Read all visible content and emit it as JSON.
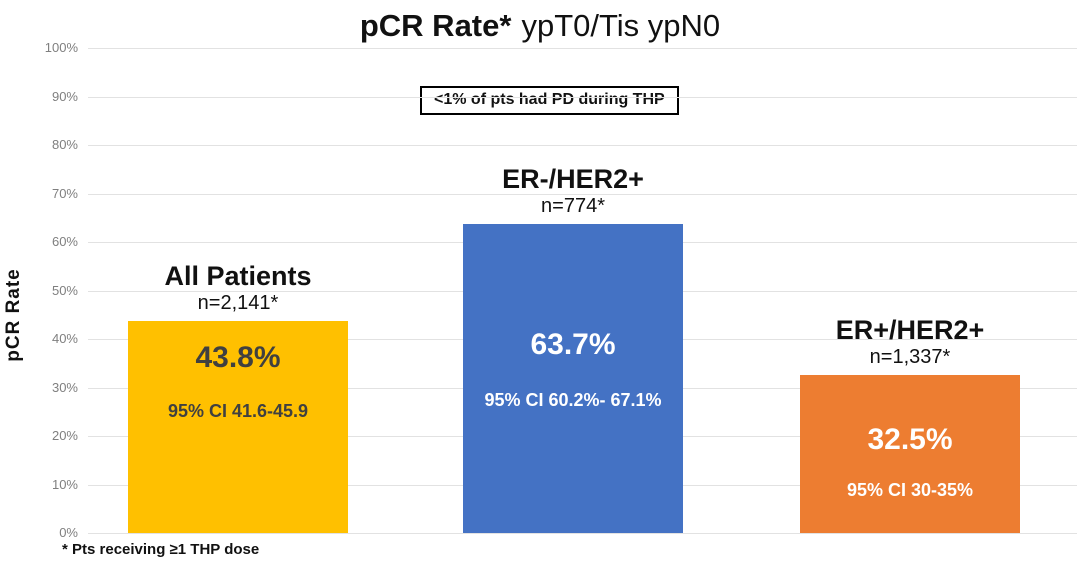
{
  "title": {
    "bold": "pCR Rate*",
    "regular": "ypT0/Tis ypN0"
  },
  "annotation": "<1% of pts had PD during THP",
  "footnote": "* Pts receiving ≥1 THP dose",
  "y_axis": {
    "label": "pCR Rate",
    "ticks": [
      "100%",
      "90%",
      "80%",
      "70%",
      "60%",
      "50%",
      "40%",
      "30%",
      "20%",
      "10%",
      "0%"
    ]
  },
  "chart_data": {
    "type": "bar",
    "title": "pCR Rate* ypT0/Tis ypN0",
    "xlabel": "",
    "ylabel": "pCR Rate",
    "ylim": [
      0,
      100
    ],
    "grid": true,
    "annotation": "<1% of pts had PD during THP",
    "footnote": "* Pts receiving ≥1 THP dose",
    "categories": [
      "All Patients",
      "ER-/HER2+",
      "ER+/HER2+"
    ],
    "values": [
      43.8,
      63.7,
      32.5
    ],
    "bars": [
      {
        "label": "All Patients",
        "n": "n=2,141*",
        "value": 43.8,
        "value_label": "43.8%",
        "ci": "95% CI 41.6-45.9",
        "color": "#FFC000",
        "text_color": "#404040"
      },
      {
        "label": "ER-/HER2+",
        "n": "n=774*",
        "value": 63.7,
        "value_label": "63.7%",
        "ci": "95% CI 60.2%- 67.1%",
        "color": "#4472C4",
        "text_color": "#FFFFFF"
      },
      {
        "label": "ER+/HER2+",
        "n": "n=1,337*",
        "value": 32.5,
        "value_label": "32.5%",
        "ci": "95% CI 30-35%",
        "color": "#ED7D31",
        "text_color": "#FFFFFF"
      }
    ]
  }
}
